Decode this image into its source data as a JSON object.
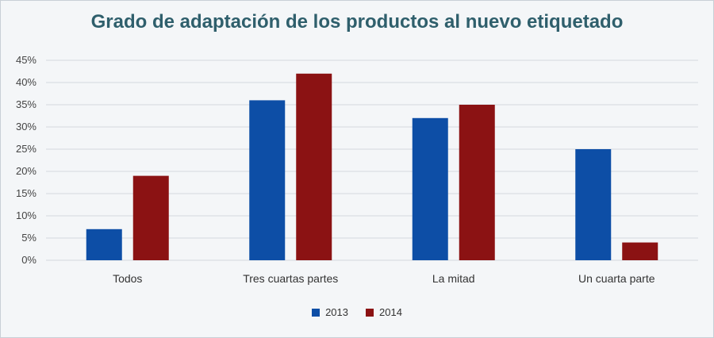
{
  "chart_data": {
    "type": "bar",
    "title": "Grado de adaptación de los productos al nuevo etiquetado",
    "categories": [
      "Todos",
      "Tres cuartas partes",
      "La mitad",
      "Un cuarta parte"
    ],
    "series": [
      {
        "name": "2013",
        "color": "#0d4ea6",
        "values": [
          7,
          36,
          32,
          25
        ]
      },
      {
        "name": "2014",
        "color": "#8b1213",
        "values": [
          19,
          42,
          35,
          4
        ]
      }
    ],
    "ylim": [
      0,
      45
    ],
    "yticks": [
      0,
      5,
      10,
      15,
      20,
      25,
      30,
      35,
      40,
      45
    ],
    "ytick_labels": [
      "0%",
      "5%",
      "10%",
      "15%",
      "20%",
      "25%",
      "30%",
      "35%",
      "40%",
      "45%"
    ],
    "grid": true,
    "legend": "bottom-center",
    "xlabel": "",
    "ylabel": ""
  }
}
